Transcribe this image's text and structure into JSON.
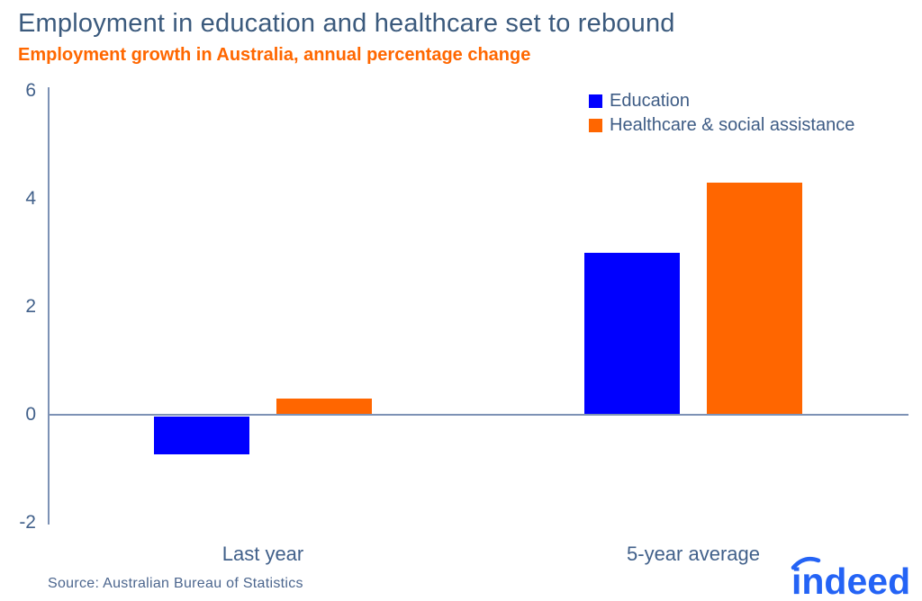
{
  "chart_data": {
    "type": "bar",
    "title": "Employment in education and healthcare set to rebound",
    "subtitle": "Employment growth in Australia, annual percentage change",
    "categories": [
      "Last year",
      "5-year average"
    ],
    "series": [
      {
        "name": "Education",
        "color": "#0000ff",
        "values": [
          -0.7,
          3.0
        ]
      },
      {
        "name": "Healthcare & social assistance",
        "color": "#ff6600",
        "values": [
          0.3,
          4.3
        ]
      }
    ],
    "ylabel": "",
    "xlabel": "",
    "ylim": [
      -2,
      6
    ],
    "yticks": [
      6,
      4,
      2,
      0,
      -2
    ],
    "grid": false,
    "legend_position": "top-right",
    "baseline_shown": true
  },
  "footer": {
    "source": "Source: Australian Bureau of Statistics",
    "logo_text": "indeed"
  },
  "colors": {
    "title_text": "#3b5a7d",
    "subtitle_text": "#ff6700",
    "axis_line": "#7d92b5",
    "tick_text": "#41608a",
    "logo_blue": "#2463f5"
  }
}
